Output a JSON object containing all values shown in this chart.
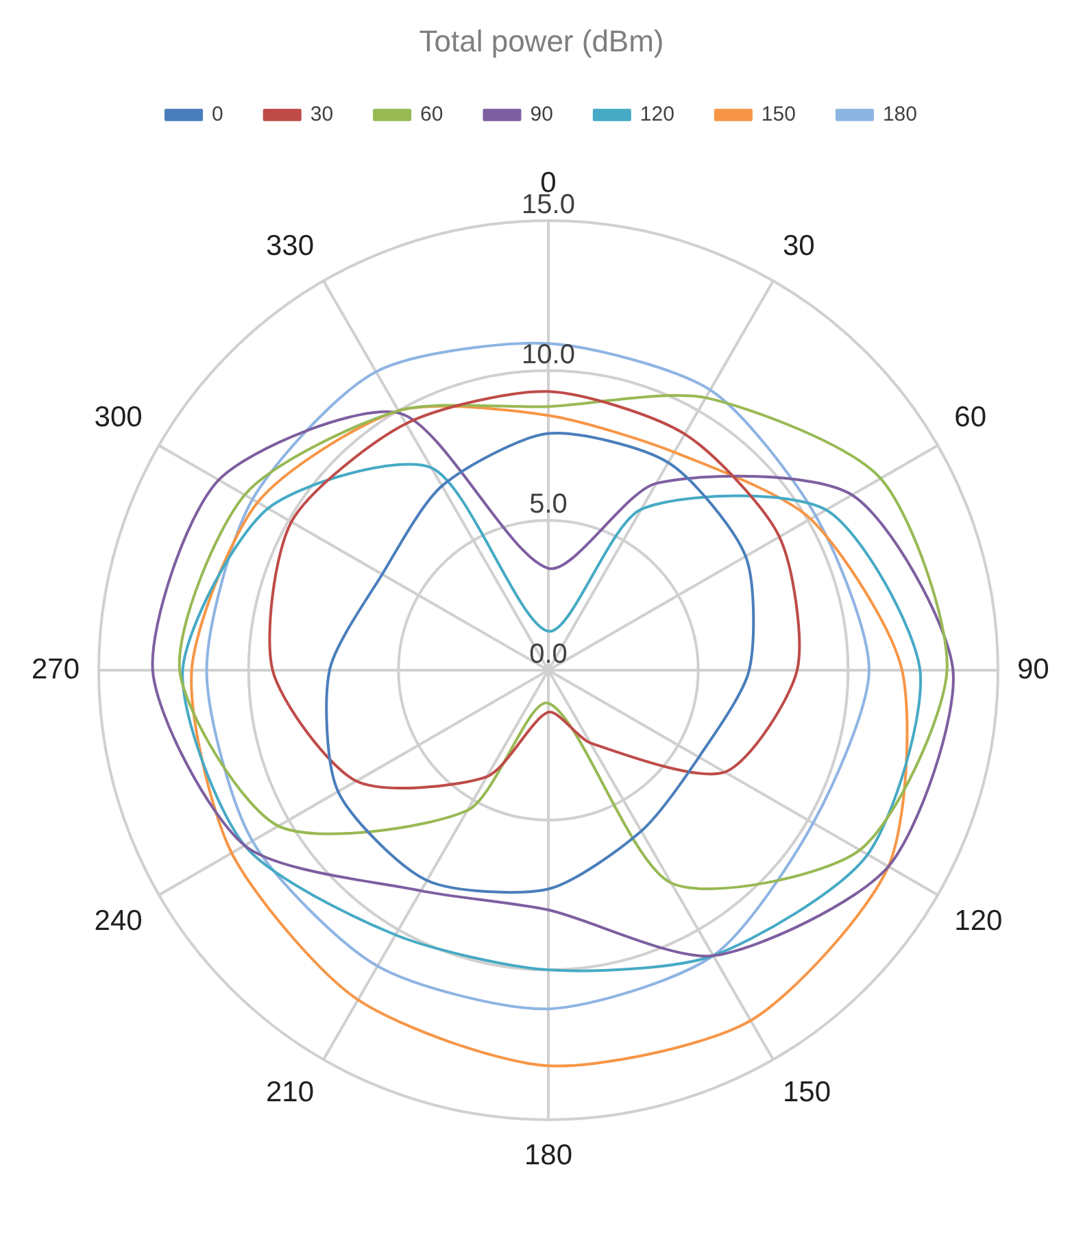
{
  "chart_data": {
    "type": "radar",
    "title": "Total power (dBm)",
    "categories": [
      "0",
      "30",
      "60",
      "90",
      "120",
      "150",
      "180",
      "210",
      "240",
      "270",
      "300",
      "330"
    ],
    "series": [
      {
        "name": "0",
        "color": "#4a7ebb",
        "values": [
          7.9,
          8.0,
          7.6,
          6.7,
          5.8,
          6.2,
          7.3,
          8.1,
          8.1,
          7.3,
          6.4,
          7.1
        ]
      },
      {
        "name": "30",
        "color": "#be4b48",
        "values": [
          9.3,
          9.1,
          8.9,
          8.3,
          6.8,
          2.8,
          1.4,
          4.1,
          7.4,
          9.2,
          9.9,
          9.5
        ]
      },
      {
        "name": "60",
        "color": "#98b954",
        "values": [
          8.8,
          10.5,
          12.8,
          13.3,
          12.0,
          8.2,
          1.1,
          5.4,
          10.4,
          12.3,
          11.7,
          10.0
        ]
      },
      {
        "name": "90",
        "color": "#7d5fa0",
        "values": [
          3.4,
          7.2,
          11.7,
          13.5,
          13.1,
          11.0,
          8.0,
          8.5,
          11.7,
          13.2,
          12.7,
          9.9
        ]
      },
      {
        "name": "120",
        "color": "#46aac5",
        "values": [
          1.3,
          6.2,
          10.7,
          12.4,
          12.3,
          11.0,
          10.0,
          10.2,
          11.7,
          12.2,
          10.8,
          7.8
        ]
      },
      {
        "name": "150",
        "color": "#f79646",
        "values": [
          8.5,
          8.4,
          10.1,
          11.8,
          13.1,
          13.5,
          13.2,
          12.7,
          12.2,
          11.9,
          11.2,
          10.0
        ]
      },
      {
        "name": "180",
        "color": "#8eb4e3",
        "values": [
          10.9,
          10.8,
          10.3,
          10.7,
          10.2,
          11.0,
          11.3,
          11.4,
          11.4,
          11.4,
          11.4,
          11.5
        ]
      }
    ],
    "ylim": [
      0,
      15
    ],
    "yticks": [
      {
        "value": 0,
        "label": "0.0"
      },
      {
        "value": 5,
        "label": "5.0"
      },
      {
        "value": 10,
        "label": "10.0"
      },
      {
        "value": 15,
        "label": "15.0"
      }
    ],
    "grid": true,
    "legend": "top",
    "marker": "none",
    "line_style": "solid"
  }
}
